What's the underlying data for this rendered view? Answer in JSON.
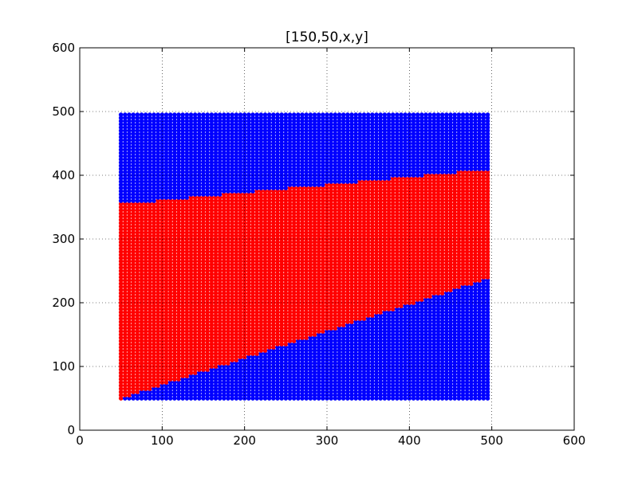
{
  "chart_data": {
    "type": "scatter",
    "title": "[150,50,x,y]",
    "xlabel": "",
    "ylabel": "",
    "xlim": [
      0,
      600
    ],
    "ylim": [
      0,
      600
    ],
    "xticks": [
      0,
      100,
      200,
      300,
      400,
      500,
      600
    ],
    "yticks": [
      0,
      100,
      200,
      300,
      400,
      500,
      600
    ],
    "xtick_labels": [
      "0",
      "100",
      "200",
      "300",
      "400",
      "500",
      "600"
    ],
    "ytick_labels": [
      "0",
      "100",
      "200",
      "300",
      "400",
      "500",
      "600"
    ],
    "grid": true,
    "grid_style": "dotted",
    "point_grid": {
      "x_range": [
        50,
        495
      ],
      "y_range": [
        50,
        495
      ],
      "step": 5
    },
    "series": [
      {
        "color": "#0000ff",
        "region": "all grid points outside the red band"
      },
      {
        "color": "#ff0000",
        "region": "points between lower and upper boundary",
        "lower_boundary": [
          [
            50,
            50
          ],
          [
            500,
            240
          ]
        ],
        "upper_boundary": [
          [
            50,
            355
          ],
          [
            500,
            410
          ]
        ]
      }
    ]
  }
}
